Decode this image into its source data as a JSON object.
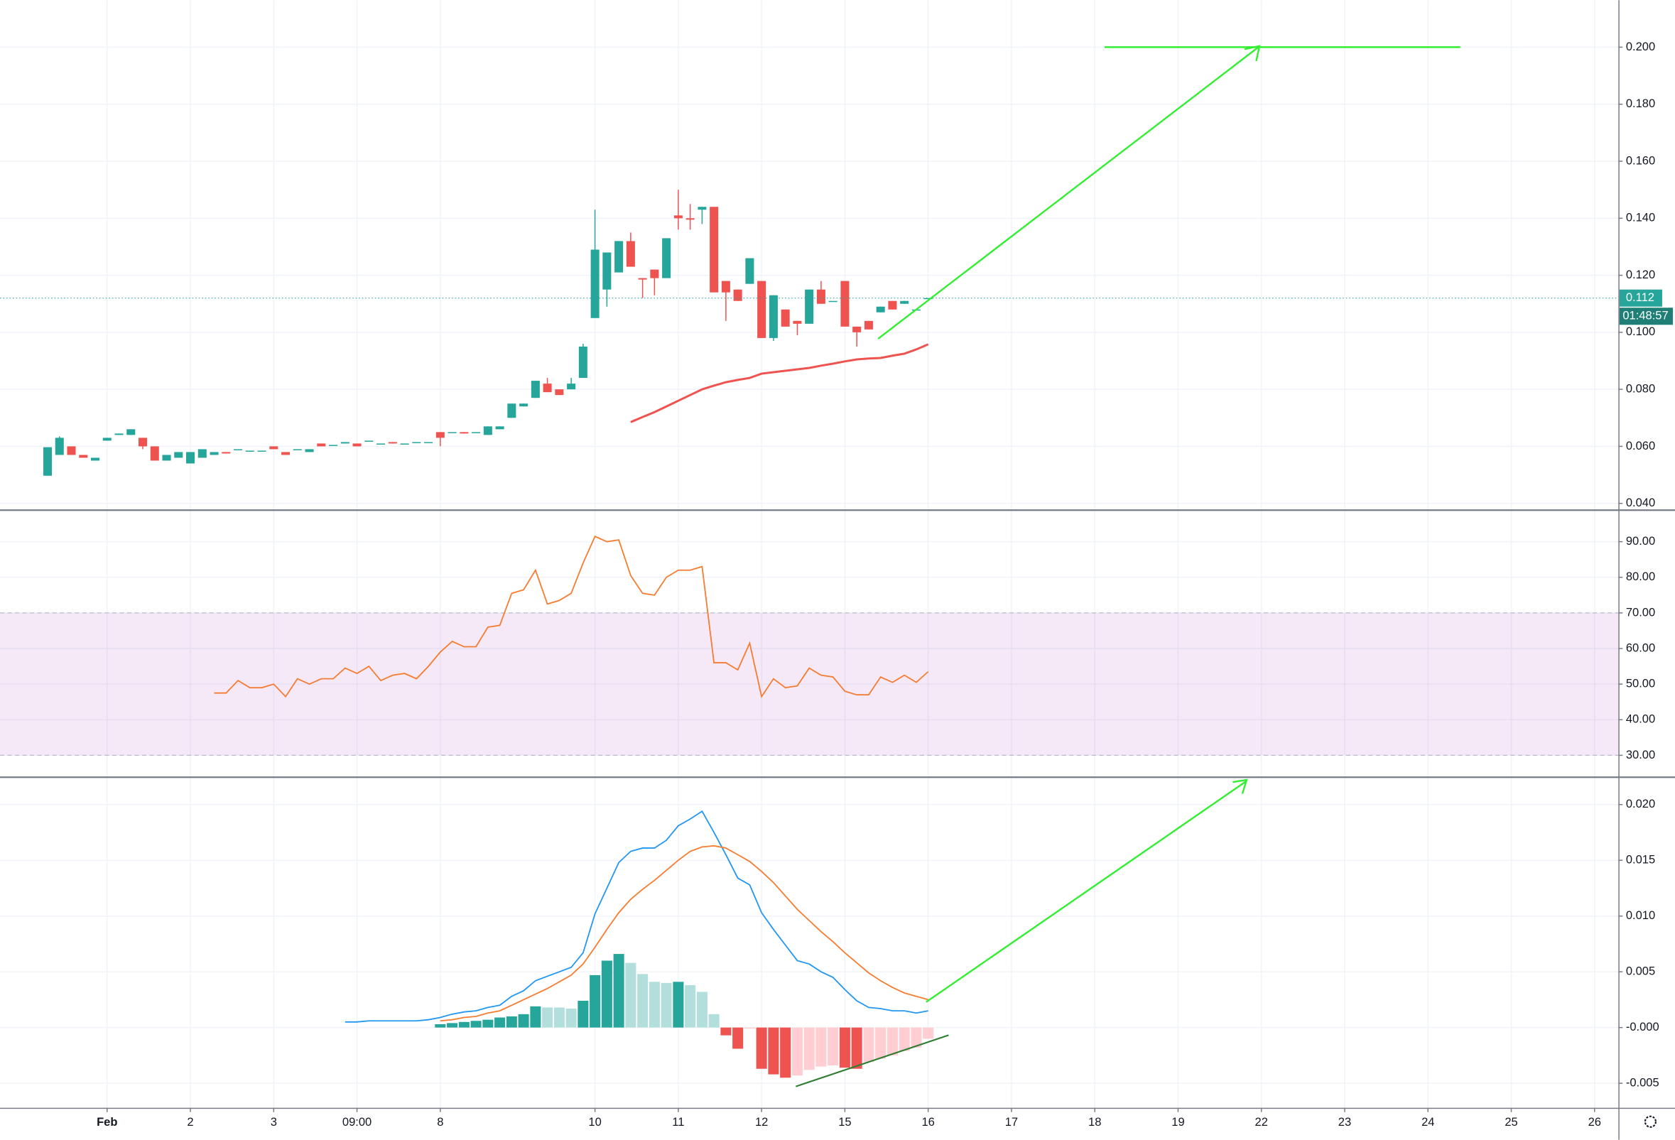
{
  "chart_data": [
    {
      "type": "candlestick",
      "x": [
        0,
        1,
        2,
        3,
        4,
        5,
        6,
        7,
        8,
        9,
        10,
        11,
        12,
        13,
        14,
        15,
        16,
        17,
        18,
        19,
        20,
        21,
        22,
        23,
        24,
        25,
        26,
        27,
        28,
        29,
        30,
        31,
        32,
        33,
        34,
        35,
        36,
        37,
        38,
        39,
        40,
        41,
        42,
        43,
        44,
        45,
        46,
        47,
        48,
        49,
        50,
        51,
        52,
        53,
        54,
        55,
        56,
        57,
        58,
        59,
        60,
        61,
        62,
        63,
        64,
        65,
        66,
        67,
        68,
        69,
        70,
        71,
        72,
        73,
        74
      ],
      "open": [
        0.0497,
        0.057,
        0.06,
        0.057,
        0.055,
        0.062,
        0.064,
        0.064,
        0.063,
        0.06,
        0.055,
        0.056,
        0.054,
        0.056,
        0.057,
        0.058,
        0.059,
        0.0585,
        0.0585,
        0.06,
        0.058,
        0.059,
        0.058,
        0.061,
        0.0605,
        0.061,
        0.061,
        0.062,
        0.061,
        0.0615,
        0.061,
        0.0615,
        0.0615,
        0.065,
        0.065,
        0.065,
        0.065,
        0.064,
        0.066,
        0.07,
        0.074,
        0.077,
        0.082,
        0.08,
        0.08,
        0.084,
        0.105,
        0.115,
        0.121,
        0.132,
        0.119,
        0.122,
        0.119,
        0.141,
        0.14,
        0.143,
        0.144,
        0.118,
        0.115,
        0.117,
        0.118,
        0.098,
        0.108,
        0.104,
        0.103,
        0.115,
        0.111,
        0.118,
        0.102,
        0.104,
        0.107,
        0.111,
        0.11,
        0.108,
        0.112
      ],
      "high": [
        0.0597,
        0.0635,
        0.06,
        0.057,
        0.056,
        0.063,
        0.0645,
        0.066,
        0.063,
        0.06,
        0.057,
        0.058,
        0.058,
        0.059,
        0.058,
        0.058,
        0.059,
        0.0585,
        0.0585,
        0.06,
        0.058,
        0.059,
        0.059,
        0.061,
        0.0605,
        0.0615,
        0.061,
        0.062,
        0.061,
        0.0615,
        0.061,
        0.0615,
        0.0615,
        0.065,
        0.065,
        0.065,
        0.065,
        0.067,
        0.067,
        0.075,
        0.075,
        0.083,
        0.084,
        0.08,
        0.084,
        0.096,
        0.143,
        0.128,
        0.132,
        0.135,
        0.119,
        0.122,
        0.133,
        0.15,
        0.145,
        0.144,
        0.144,
        0.118,
        0.115,
        0.126,
        0.118,
        0.113,
        0.108,
        0.104,
        0.115,
        0.118,
        0.111,
        0.118,
        0.102,
        0.104,
        0.109,
        0.111,
        0.111,
        0.108,
        0.112
      ],
      "low": [
        0.0497,
        0.057,
        0.057,
        0.056,
        0.055,
        0.062,
        0.064,
        0.064,
        0.059,
        0.055,
        0.055,
        0.056,
        0.054,
        0.056,
        0.057,
        0.0575,
        0.059,
        0.0585,
        0.0585,
        0.059,
        0.057,
        0.059,
        0.058,
        0.06,
        0.0605,
        0.061,
        0.06,
        0.062,
        0.061,
        0.061,
        0.061,
        0.0615,
        0.0615,
        0.06,
        0.065,
        0.0645,
        0.065,
        0.064,
        0.066,
        0.07,
        0.074,
        0.077,
        0.079,
        0.078,
        0.08,
        0.084,
        0.105,
        0.109,
        0.121,
        0.123,
        0.112,
        0.113,
        0.119,
        0.136,
        0.136,
        0.138,
        0.114,
        0.104,
        0.111,
        0.117,
        0.098,
        0.097,
        0.102,
        0.099,
        0.103,
        0.11,
        0.111,
        0.102,
        0.095,
        0.101,
        0.107,
        0.108,
        0.11,
        0.108,
        0.112
      ],
      "close": [
        0.0597,
        0.063,
        0.057,
        0.056,
        0.056,
        0.063,
        0.0645,
        0.066,
        0.06,
        0.055,
        0.057,
        0.058,
        0.058,
        0.059,
        0.058,
        0.0575,
        0.059,
        0.0585,
        0.0585,
        0.059,
        0.057,
        0.059,
        0.059,
        0.06,
        0.0605,
        0.0615,
        0.06,
        0.062,
        0.061,
        0.061,
        0.061,
        0.0615,
        0.0615,
        0.063,
        0.065,
        0.0645,
        0.065,
        0.067,
        0.067,
        0.075,
        0.075,
        0.083,
        0.079,
        0.078,
        0.082,
        0.095,
        0.129,
        0.128,
        0.132,
        0.123,
        0.1185,
        0.119,
        0.133,
        0.14,
        0.1395,
        0.144,
        0.114,
        0.114,
        0.111,
        0.126,
        0.098,
        0.113,
        0.102,
        0.103,
        0.115,
        0.11,
        0.111,
        0.102,
        0.1,
        0.101,
        0.109,
        0.108,
        0.111,
        0.108,
        0.112
      ],
      "colors": {
        "up": "#26a69a",
        "down": "#ef5350"
      },
      "ma": {
        "color": "#ef5350",
        "x": [
          49,
          50,
          51,
          52,
          53,
          54,
          55,
          56,
          57,
          58,
          59,
          60,
          61,
          62,
          63,
          64,
          65,
          66,
          67,
          68,
          69,
          70,
          71,
          72,
          73,
          74
        ],
        "values": [
          0.0685,
          0.0703,
          0.072,
          0.074,
          0.076,
          0.078,
          0.08,
          0.0813,
          0.0825,
          0.0833,
          0.084,
          0.0855,
          0.086,
          0.0865,
          0.087,
          0.0875,
          0.0883,
          0.089,
          0.0898,
          0.0905,
          0.0908,
          0.091,
          0.0918,
          0.0925,
          0.094,
          0.0958
        ]
      },
      "last_price": {
        "value": 0.112,
        "label": "0.112"
      },
      "countdown": "01:48:57",
      "xlim": [
        -4,
        132
      ],
      "ylim": [
        0.0378,
        0.2165
      ],
      "yticks": [
        {
          "value": 0.04,
          "label": "0.040"
        },
        {
          "value": 0.06,
          "label": "0.060"
        },
        {
          "value": 0.08,
          "label": "0.080"
        },
        {
          "value": 0.1,
          "label": "0.100"
        },
        {
          "value": 0.12,
          "label": "0.120"
        },
        {
          "value": 0.14,
          "label": "0.140"
        },
        {
          "value": 0.16,
          "label": "0.160"
        },
        {
          "value": 0.18,
          "label": "0.180"
        },
        {
          "value": 0.2,
          "label": "0.200"
        }
      ]
    },
    {
      "type": "line",
      "series": [
        {
          "color": "#f57c30",
          "x": [
            14,
            15,
            16,
            17,
            18,
            19,
            20,
            21,
            22,
            23,
            24,
            25,
            26,
            27,
            28,
            29,
            30,
            31,
            32,
            33,
            34,
            35,
            36,
            37,
            38,
            39,
            40,
            41,
            42,
            43,
            44,
            45,
            46,
            47,
            48,
            49,
            50,
            51,
            52,
            53,
            54,
            55,
            56,
            57,
            58,
            59,
            60,
            61,
            62,
            63,
            64,
            65,
            66,
            67,
            68,
            69,
            70,
            71,
            72,
            73,
            74
          ],
          "values": [
            47.5,
            47.5,
            51,
            49,
            49,
            50,
            46.5,
            51.5,
            50,
            51.5,
            51.5,
            54.5,
            53,
            55,
            51,
            52.5,
            53,
            51.5,
            55,
            59,
            62,
            60.5,
            60.5,
            66,
            66.5,
            75.5,
            76.5,
            82,
            72.5,
            73.5,
            75.5,
            84,
            91.5,
            90,
            90.5,
            80.5,
            75.5,
            75,
            80,
            82,
            82,
            83,
            56,
            56,
            54,
            61.5,
            46.5,
            51.5,
            49,
            49.5,
            54.5,
            52.5,
            52,
            48,
            47,
            47,
            52,
            50.5,
            52.5,
            50.5,
            53.5
          ]
        }
      ],
      "band": [
        30,
        70
      ],
      "band_color": "#9c27b0",
      "xlim": [
        -4,
        132
      ],
      "ylim": [
        24,
        99
      ],
      "yticks": [
        {
          "value": 30,
          "label": "30.00"
        },
        {
          "value": 40,
          "label": "40.00"
        },
        {
          "value": 50,
          "label": "50.00"
        },
        {
          "value": 60,
          "label": "60.00"
        },
        {
          "value": 70,
          "label": "70.00"
        },
        {
          "value": 80,
          "label": "80.00"
        },
        {
          "value": 90,
          "label": "90.00"
        }
      ]
    },
    {
      "type": "macd",
      "series": [
        {
          "color": "#2196f3",
          "x": [
            25,
            26,
            27,
            28,
            29,
            30,
            31,
            32,
            33,
            34,
            35,
            36,
            37,
            38,
            39,
            40,
            41,
            42,
            43,
            44,
            45,
            46,
            47,
            48,
            49,
            50,
            51,
            52,
            53,
            54,
            55,
            56,
            57,
            58,
            59,
            60,
            61,
            62,
            63,
            64,
            65,
            66,
            67,
            68,
            69,
            70,
            71,
            72,
            73,
            74
          ],
          "values": [
            0.0005,
            0.0005,
            0.0006,
            0.0006,
            0.0006,
            0.0006,
            0.0006,
            0.0007,
            0.0009,
            0.0012,
            0.0014,
            0.0015,
            0.0018,
            0.002,
            0.0028,
            0.0033,
            0.0042,
            0.0046,
            0.005,
            0.0054,
            0.0067,
            0.0102,
            0.0125,
            0.0148,
            0.0158,
            0.0161,
            0.0161,
            0.0168,
            0.0181,
            0.0187,
            0.0194,
            0.0175,
            0.0155,
            0.0134,
            0.0128,
            0.0103,
            0.0088,
            0.0074,
            0.006,
            0.0057,
            0.005,
            0.0045,
            0.0034,
            0.0024,
            0.0018,
            0.0017,
            0.0015,
            0.0015,
            0.0013,
            0.0015
          ]
        },
        {
          "color": "#f57c30",
          "x": [
            33,
            34,
            35,
            36,
            37,
            38,
            39,
            40,
            41,
            42,
            43,
            44,
            45,
            46,
            47,
            48,
            49,
            50,
            51,
            52,
            53,
            54,
            55,
            56,
            57,
            58,
            59,
            60,
            61,
            62,
            63,
            64,
            65,
            66,
            67,
            68,
            69,
            70,
            71,
            72,
            73,
            74
          ],
          "values": [
            0.0006,
            0.0007,
            0.0009,
            0.001,
            0.0013,
            0.0015,
            0.002,
            0.0025,
            0.003,
            0.0035,
            0.0041,
            0.0047,
            0.0057,
            0.0072,
            0.0088,
            0.0103,
            0.0115,
            0.0124,
            0.0132,
            0.0141,
            0.015,
            0.0158,
            0.0162,
            0.0163,
            0.0161,
            0.0155,
            0.0149,
            0.014,
            0.013,
            0.0118,
            0.0106,
            0.0096,
            0.0086,
            0.0077,
            0.0067,
            0.0058,
            0.0049,
            0.0042,
            0.0036,
            0.0031,
            0.0028,
            0.0025
          ]
        }
      ],
      "histogram": {
        "x": [
          33,
          34,
          35,
          36,
          37,
          38,
          39,
          40,
          41,
          42,
          43,
          44,
          45,
          46,
          47,
          48,
          49,
          50,
          51,
          52,
          53,
          54,
          55,
          56,
          57,
          58,
          59,
          60,
          61,
          62,
          63,
          64,
          65,
          66,
          67,
          68,
          69,
          70,
          71,
          72,
          73,
          74
        ],
        "values": [
          0.0003,
          0.0004,
          0.0005,
          0.0006,
          0.0007,
          0.0009,
          0.001,
          0.0012,
          0.0019,
          0.0018,
          0.0018,
          0.0017,
          0.0024,
          0.0047,
          0.006,
          0.0066,
          0.0058,
          0.0048,
          0.0041,
          0.004,
          0.0041,
          0.0038,
          0.0032,
          0.0012,
          -0.0007,
          -0.0019,
          -0.0001,
          -0.0037,
          -0.0042,
          -0.0045,
          -0.0043,
          -0.0038,
          -0.0035,
          -0.0034,
          -0.0036,
          -0.0037,
          -0.0031,
          -0.0028,
          -0.0025,
          -0.0021,
          -0.0018,
          -0.001
        ],
        "colors": {
          "grow_above": "#26a69a",
          "fall_above": "#b2dfdb",
          "grow_below": "#ffcdd2",
          "fall_below": "#ef5350"
        }
      },
      "xlim": [
        -4,
        132
      ],
      "ylim": [
        -0.0072,
        0.0225
      ],
      "yticks": [
        {
          "value": -0.005,
          "label": "-0.005"
        },
        {
          "value": 0,
          "label": "-0.000"
        },
        {
          "value": 0.005,
          "label": "0.005"
        },
        {
          "value": 0.01,
          "label": "0.010"
        },
        {
          "value": 0.015,
          "label": "0.015"
        },
        {
          "value": 0.02,
          "label": "0.020"
        }
      ],
      "xticks": [
        {
          "value": 5,
          "label": "Feb"
        },
        {
          "value": 12,
          "label": "2"
        },
        {
          "value": 19,
          "label": "3"
        },
        {
          "value": 26,
          "label": "09:00"
        },
        {
          "value": 33,
          "label": "8"
        },
        {
          "value": 46,
          "label": "10"
        },
        {
          "value": 53,
          "label": "11"
        },
        {
          "value": 60,
          "label": "12"
        },
        {
          "value": 67,
          "label": "15"
        },
        {
          "value": 74,
          "label": "16"
        },
        {
          "value": 81,
          "label": "17"
        },
        {
          "value": 88,
          "label": "18"
        },
        {
          "value": 95,
          "label": "19"
        },
        {
          "value": 102,
          "label": "22"
        },
        {
          "value": 109,
          "label": "23"
        },
        {
          "value": 116,
          "label": "24"
        },
        {
          "value": 123,
          "label": "25"
        },
        {
          "value": 130,
          "label": "26"
        }
      ]
    }
  ]
}
